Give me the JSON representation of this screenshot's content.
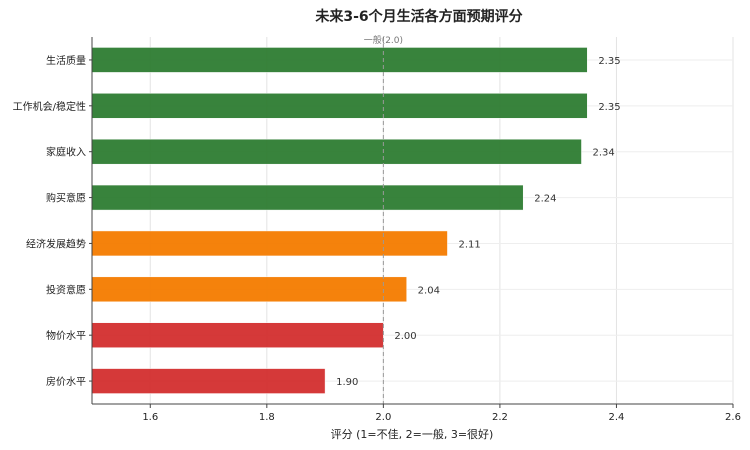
{
  "chart_data": {
    "type": "bar",
    "orientation": "horizontal",
    "title": "未来3-6个月生活各方面预期评分",
    "xlabel": "评分 (1=不佳, 2=一般, 3=很好)",
    "ylabel": "",
    "xlim": [
      1.5,
      2.6
    ],
    "xticks": [
      "1.6",
      "1.8",
      "2.0",
      "2.2",
      "2.4",
      "2.6"
    ],
    "grid": true,
    "categories": [
      "生活质量",
      "工作机会/稳定性",
      "家庭收入",
      "购买意愿",
      "经济发展趋势",
      "投资意愿",
      "物价水平",
      "房价水平"
    ],
    "values": [
      2.35,
      2.35,
      2.34,
      2.24,
      2.11,
      2.04,
      2.0,
      1.9
    ],
    "value_labels": [
      "2.35",
      "2.35",
      "2.34",
      "2.24",
      "2.11",
      "2.04",
      "2.00",
      "1.90"
    ],
    "bar_colors": [
      "#2e7d32",
      "#2e7d32",
      "#2e7d32",
      "#2e7d32",
      "#f57c00",
      "#f57c00",
      "#d32f2f",
      "#d32f2f"
    ],
    "reference_line": {
      "value": 2.0,
      "label": "一般(2.0)",
      "color": "#999999"
    }
  }
}
